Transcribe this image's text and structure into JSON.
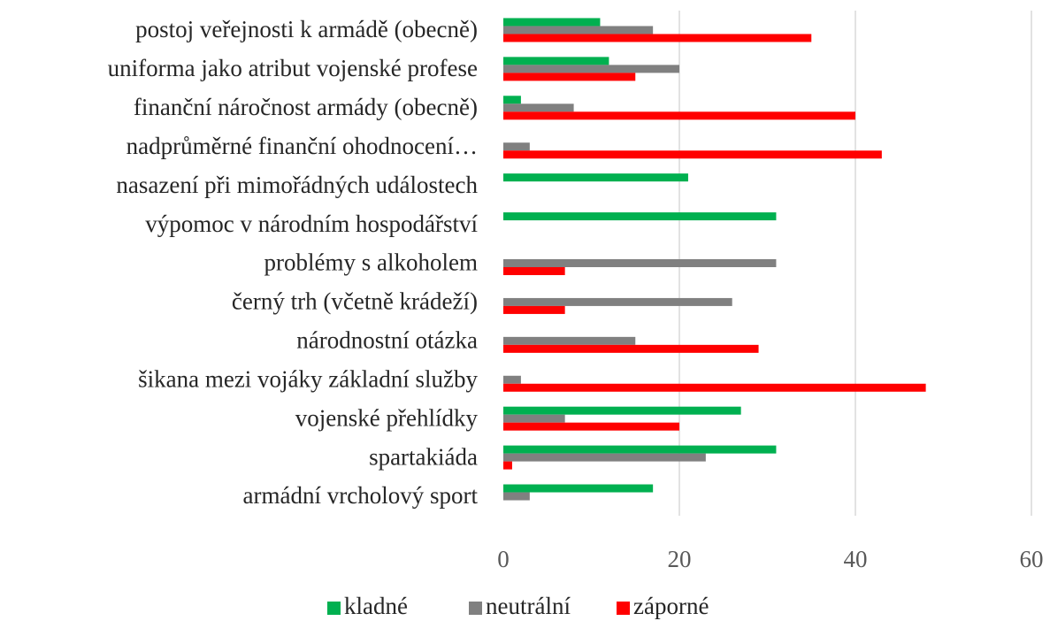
{
  "chart_data": {
    "type": "barh",
    "categories": [
      "postoj veřejnosti k armádě (obecně)",
      "uniforma jako atribut vojenské profese",
      "finanční náročnost armády (obecně)",
      "nadprůměrné finanční ohodnocení…",
      "nasazení při mimořádných událostech",
      "výpomoc v národním hospodářství",
      "problémy s alkoholem",
      "černý trh (včetně krádeží)",
      "národnostní otázka",
      "šikana mezi vojáky základní služby",
      "vojenské přehlídky",
      "spartakiáda",
      "armádní vrcholový sport"
    ],
    "series": [
      {
        "name": "kladné",
        "color": "#00b050",
        "values": [
          11,
          12,
          2,
          0,
          21,
          31,
          0,
          0,
          0,
          0,
          27,
          31,
          17
        ]
      },
      {
        "name": "neutrální",
        "color": "#808080",
        "values": [
          17,
          20,
          8,
          3,
          0,
          0,
          31,
          26,
          15,
          2,
          7,
          23,
          3
        ]
      },
      {
        "name": "záporné",
        "color": "#ff0000",
        "values": [
          35,
          15,
          40,
          43,
          0,
          0,
          7,
          7,
          29,
          48,
          20,
          1,
          0
        ]
      }
    ],
    "xlim": [
      0,
      60
    ],
    "xticks": [
      0,
      20,
      40,
      60
    ],
    "grid": true,
    "legend": "bottom"
  }
}
